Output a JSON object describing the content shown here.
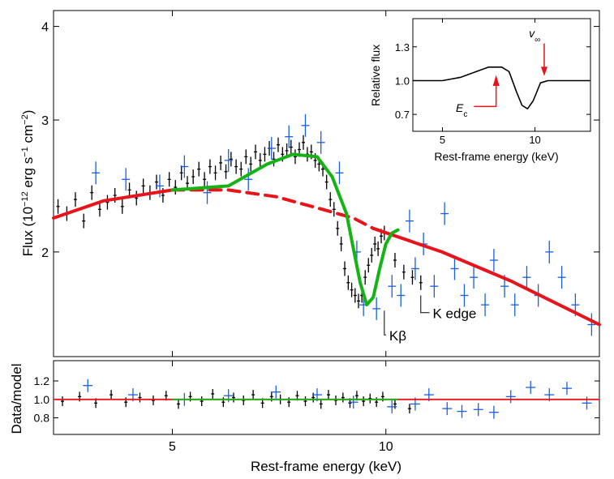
{
  "chart_data": [
    {
      "type": "scatter",
      "panel": "main",
      "ylabel_prefix": "Flux (10",
      "ylabel_exp1": "−12",
      "ylabel_mid": " erg s",
      "ylabel_exp2": "−1",
      "ylabel_mid2": " cm",
      "ylabel_exp3": "−2",
      "ylabel_suffix": ")",
      "yscale": "log",
      "ylim": [
        1.45,
        4.2
      ],
      "xscale": "log",
      "xlim": [
        3.4,
        20
      ],
      "yticks": [
        2,
        3,
        4
      ],
      "ytick_labels": [
        "2",
        "3",
        "4"
      ],
      "annotations": [
        {
          "text": "Kβ",
          "x": 9.9,
          "y": 1.55
        },
        {
          "text": "K edge",
          "x": 11.4,
          "y": 1.66
        }
      ],
      "series": [
        {
          "color": "#e8141b",
          "style": "solid",
          "x": [
            3.4,
            4.0,
            5.0
          ],
          "y": [
            2.22,
            2.34,
            2.42
          ]
        },
        {
          "color": "#e8141b",
          "style": "dashed",
          "x": [
            5.0,
            6.0,
            7.0,
            8.0,
            9.0,
            9.6
          ],
          "y": [
            2.42,
            2.42,
            2.37,
            2.29,
            2.22,
            2.15
          ]
        },
        {
          "color": "#e8141b",
          "style": "solid",
          "x": [
            9.6,
            12,
            15,
            20
          ],
          "y": [
            2.15,
            2.0,
            1.83,
            1.6
          ]
        },
        {
          "color": "#16b316",
          "style": "solid",
          "x": [
            5.0,
            6.0,
            6.8,
            7.4,
            8.0,
            8.4,
            8.8,
            9.0,
            9.2,
            9.4,
            9.6,
            9.8,
            10.0,
            10.2,
            10.4
          ],
          "y": [
            2.42,
            2.45,
            2.62,
            2.7,
            2.68,
            2.52,
            2.25,
            2.02,
            1.82,
            1.7,
            1.74,
            1.9,
            2.05,
            2.12,
            2.14
          ]
        },
        {
          "color": "#000000",
          "style": "points",
          "x": [
            3.45,
            3.55,
            3.65,
            3.75,
            3.85,
            3.95,
            4.05,
            4.15,
            4.25,
            4.35,
            4.45,
            4.55,
            4.65,
            4.75,
            4.85,
            4.95,
            5.05,
            5.15,
            5.25,
            5.35,
            5.45,
            5.55,
            5.65,
            5.75,
            5.85,
            5.95,
            6.05,
            6.15,
            6.25,
            6.35,
            6.45,
            6.55,
            6.65,
            6.75,
            6.85,
            6.95,
            7.05,
            7.15,
            7.25,
            7.35,
            7.45,
            7.55,
            7.65,
            7.75,
            7.85,
            7.95,
            8.05,
            8.15,
            8.25,
            8.35,
            8.45,
            8.55,
            8.65,
            8.75,
            8.85,
            8.95,
            9.05,
            9.15,
            9.25,
            9.35,
            9.45,
            9.55,
            9.65,
            9.75,
            9.85,
            9.95,
            10.3,
            10.6,
            10.9,
            11.2
          ],
          "y": [
            2.3,
            2.25,
            2.35,
            2.2,
            2.4,
            2.28,
            2.33,
            2.38,
            2.3,
            2.42,
            2.36,
            2.45,
            2.4,
            2.48,
            2.38,
            2.5,
            2.44,
            2.55,
            2.47,
            2.52,
            2.58,
            2.5,
            2.6,
            2.55,
            2.63,
            2.56,
            2.66,
            2.6,
            2.58,
            2.68,
            2.62,
            2.72,
            2.65,
            2.7,
            2.75,
            2.66,
            2.78,
            2.7,
            2.73,
            2.76,
            2.68,
            2.74,
            2.8,
            2.7,
            2.72,
            2.65,
            2.62,
            2.58,
            2.48,
            2.35,
            2.28,
            2.15,
            2.05,
            1.9,
            1.82,
            1.78,
            1.75,
            1.72,
            1.75,
            1.85,
            1.92,
            1.98,
            2.05,
            2.02,
            2.1,
            2.12,
            1.95,
            1.88,
            1.85,
            1.82
          ]
        },
        {
          "color": "#1a5fe0",
          "style": "points",
          "x": [
            3.9,
            4.3,
            4.8,
            5.2,
            5.6,
            6.0,
            6.4,
            6.9,
            7.3,
            7.7,
            8.1,
            8.6,
            9.1,
            9.3,
            9.7,
            10.2,
            10.5,
            10.8,
            11.0,
            11.3,
            11.7,
            12.1,
            12.5,
            12.9,
            13.3,
            13.8,
            14.2,
            14.7,
            15.2,
            15.8,
            16.4,
            17.0,
            17.7,
            18.5,
            19.5
          ],
          "y": [
            2.55,
            2.5,
            2.45,
            2.6,
            2.4,
            2.65,
            2.5,
            2.75,
            2.85,
            2.95,
            2.8,
            2.55,
            2.0,
            1.7,
            1.68,
            1.8,
            1.75,
            2.2,
            1.9,
            2.05,
            1.8,
            2.25,
            1.9,
            1.75,
            1.85,
            1.7,
            1.95,
            1.8,
            1.7,
            1.85,
            1.75,
            2.0,
            1.85,
            1.7,
            1.6
          ]
        }
      ]
    },
    {
      "type": "line",
      "panel": "inset",
      "xlabel": "Rest-frame energy (keV)",
      "ylabel": "Relative flux",
      "xlim": [
        3.4,
        13
      ],
      "ylim": [
        0.55,
        1.55
      ],
      "xticks": [
        5,
        10
      ],
      "xtick_labels": [
        "5",
        "10"
      ],
      "yticks": [
        0.7,
        1.0,
        1.3
      ],
      "ytick_labels": [
        "0.7",
        "1.0",
        "1.3"
      ],
      "annotations": [
        {
          "text": "E",
          "sub": "c",
          "x": 6.6,
          "y": 0.76
        },
        {
          "text": "v",
          "sub": "∞",
          "x": 10.2,
          "y": 1.42
        }
      ],
      "series": [
        {
          "color": "#000000",
          "x": [
            3.4,
            5.0,
            6.0,
            7.0,
            7.5,
            8.2,
            8.6,
            9.0,
            9.3,
            9.6,
            9.9,
            10.3,
            10.7,
            11.5,
            13.0
          ],
          "y": [
            1.0,
            1.0,
            1.03,
            1.09,
            1.12,
            1.12,
            1.08,
            0.9,
            0.78,
            0.75,
            0.82,
            0.98,
            1.0,
            1.0,
            1.0
          ]
        }
      ]
    },
    {
      "type": "scatter",
      "panel": "ratio",
      "xlabel": "Rest-frame energy (keV)",
      "ylabel": "Data/model",
      "xlim": [
        3.4,
        20
      ],
      "ylim": [
        0.62,
        1.42
      ],
      "xscale": "log",
      "xticks": [
        5,
        10
      ],
      "xtick_labels": [
        "5",
        "10"
      ],
      "yticks": [
        0.8,
        1.0,
        1.2
      ],
      "ytick_labels": [
        "0.8",
        "1.0",
        "1.2"
      ],
      "series": [
        {
          "color": "#e8141b",
          "style": "solid",
          "x": [
            3.4,
            20
          ],
          "y": [
            1.0,
            1.0
          ]
        },
        {
          "color": "#16b316",
          "style": "solid",
          "x": [
            5.0,
            10.4
          ],
          "y": [
            1.0,
            1.0
          ]
        },
        {
          "color": "#000000",
          "style": "points",
          "x": [
            3.5,
            3.7,
            3.9,
            4.1,
            4.3,
            4.5,
            4.7,
            4.9,
            5.1,
            5.3,
            5.5,
            5.7,
            5.9,
            6.1,
            6.3,
            6.5,
            6.7,
            6.9,
            7.1,
            7.3,
            7.5,
            7.7,
            7.9,
            8.1,
            8.3,
            8.5,
            8.7,
            8.9,
            9.1,
            9.3,
            9.5,
            9.7,
            9.9,
            10.3,
            10.8
          ],
          "y": [
            0.98,
            1.03,
            0.96,
            1.05,
            0.97,
            1.02,
            0.99,
            1.04,
            0.95,
            1.03,
            0.98,
            1.06,
            0.97,
            1.02,
            0.99,
            1.05,
            0.96,
            1.03,
            1.0,
            0.97,
            1.04,
            0.98,
            1.02,
            0.95,
            1.05,
            0.99,
            1.02,
            0.96,
            1.04,
            0.98,
            1.01,
            0.97,
            1.03,
            0.95,
            0.9
          ]
        },
        {
          "color": "#1a5fe0",
          "style": "points",
          "x": [
            3.8,
            4.4,
            5.2,
            6.0,
            7.0,
            8.0,
            9.0,
            10.2,
            11.0,
            11.5,
            12.2,
            12.8,
            13.5,
            14.2,
            15.0,
            16.0,
            17.0,
            18.0,
            19.2
          ],
          "y": [
            1.15,
            1.05,
            1.0,
            1.04,
            1.08,
            1.05,
            0.97,
            0.92,
            0.95,
            1.05,
            0.9,
            0.87,
            0.89,
            0.86,
            1.03,
            1.13,
            1.05,
            1.12,
            0.96
          ]
        }
      ]
    }
  ]
}
